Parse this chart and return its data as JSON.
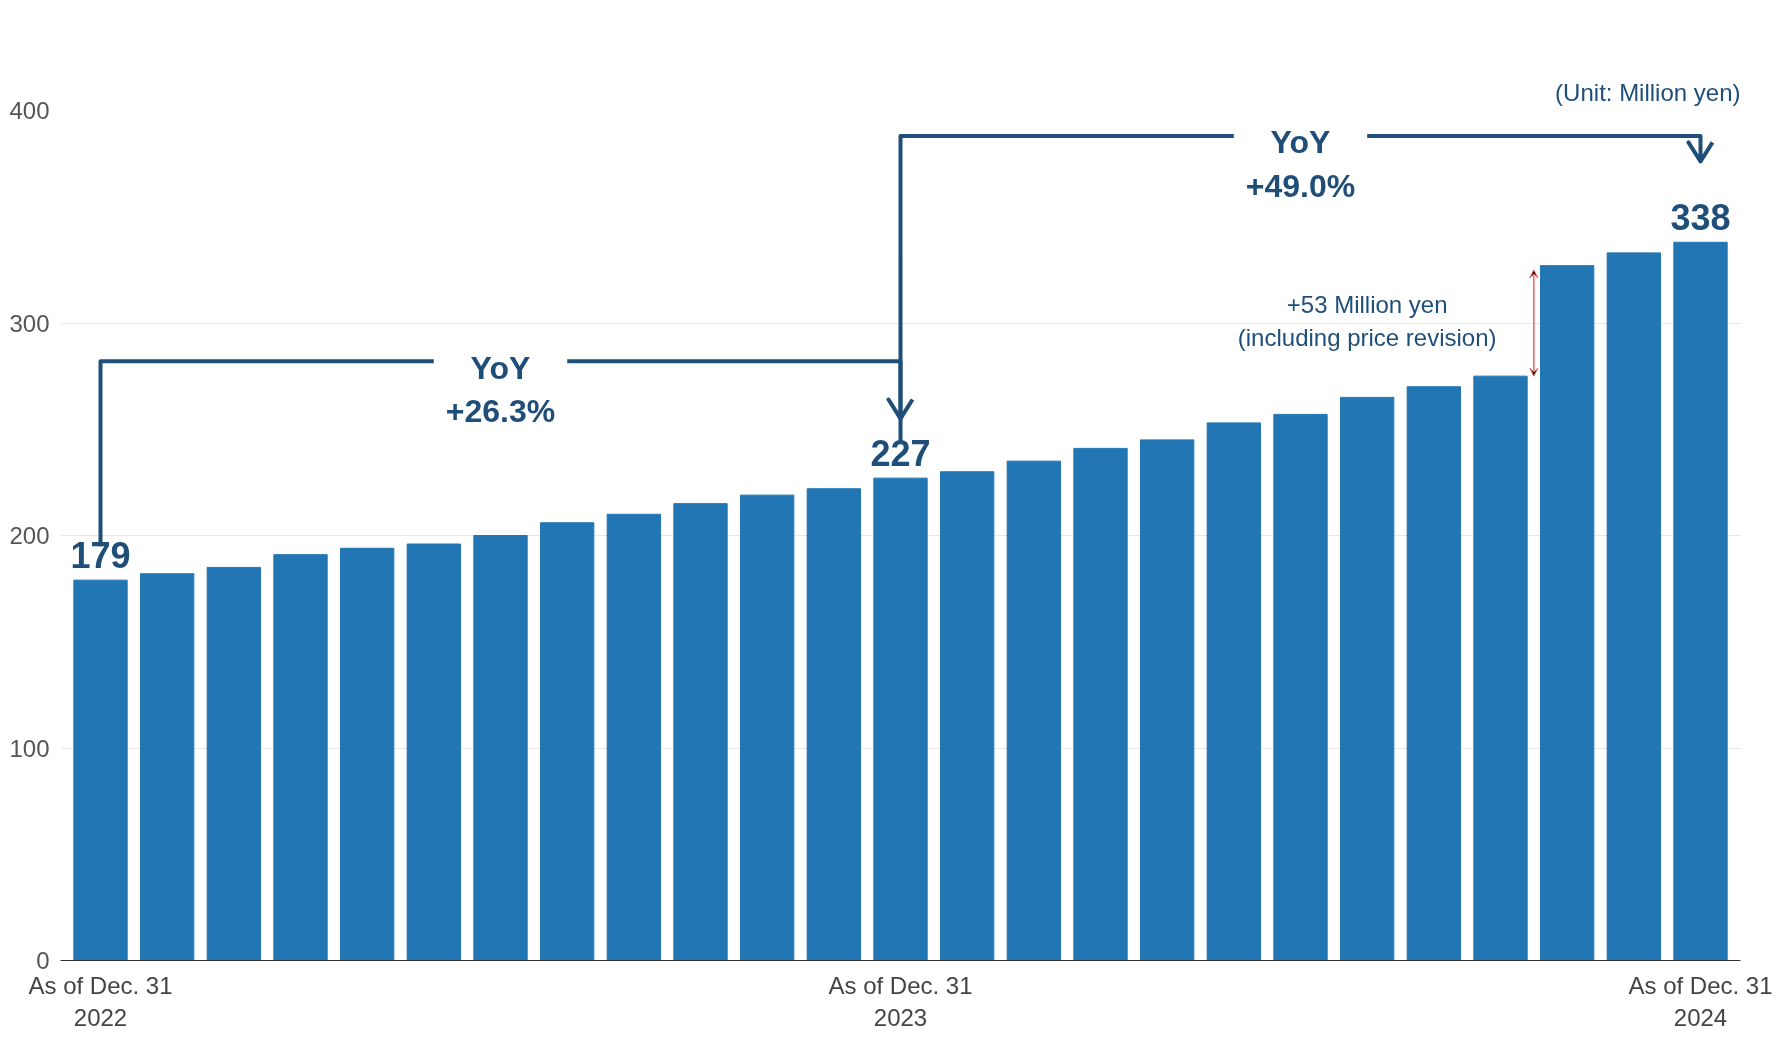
{
  "chart_data": {
    "type": "bar",
    "categories": [
      "As of Dec. 31\n2022",
      null,
      null,
      null,
      null,
      null,
      null,
      null,
      null,
      null,
      null,
      null,
      "As of Dec. 31\n2023",
      null,
      null,
      null,
      null,
      null,
      null,
      null,
      null,
      null,
      null,
      null,
      "As of Dec. 31\n2024"
    ],
    "values": [
      179,
      182,
      185,
      191,
      194,
      196,
      200,
      206,
      210,
      215,
      219,
      222,
      227,
      230,
      235,
      241,
      245,
      253,
      257,
      265,
      270,
      275,
      327,
      333,
      338
    ],
    "value_labels": [
      "179",
      null,
      null,
      null,
      null,
      null,
      null,
      null,
      null,
      null,
      null,
      null,
      "227",
      null,
      null,
      null,
      null,
      null,
      null,
      null,
      null,
      null,
      null,
      null,
      "338"
    ],
    "color": "#2176b3",
    "ylim": [
      0,
      400
    ],
    "yticks": [
      0,
      100,
      200,
      300,
      400
    ],
    "grid": "y",
    "annotations": [
      "(Unit: Million yen)",
      "YoY\n+26.3%",
      "YoY\n+49.0%",
      "+53 Million yen\n(including price revision)"
    ]
  }
}
